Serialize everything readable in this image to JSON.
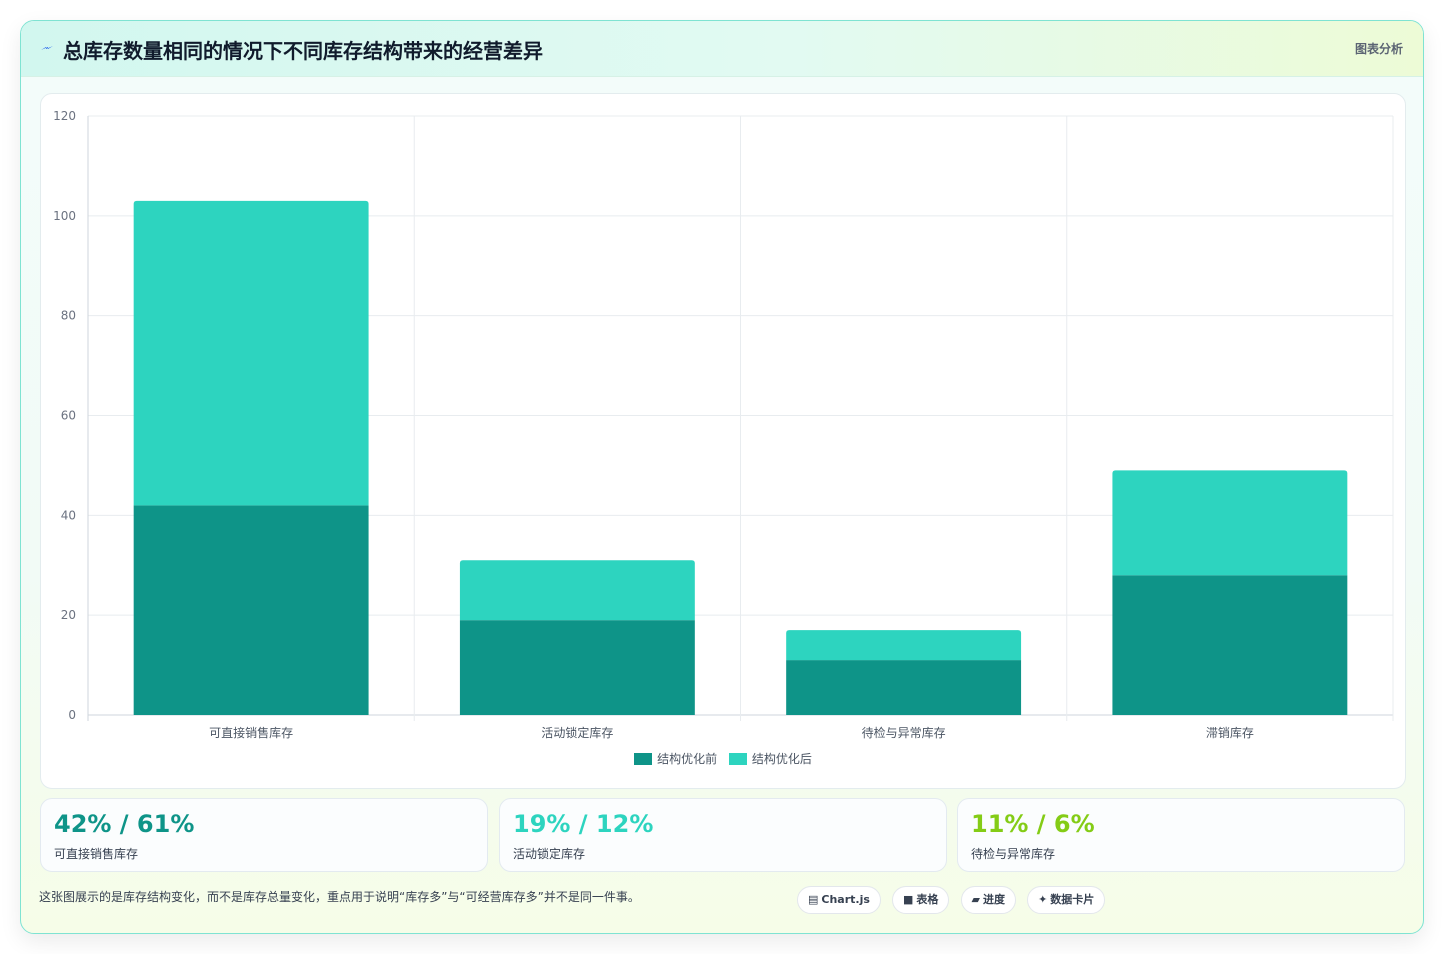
{
  "header": {
    "title": "总库存数量相同的情况下不同库存结构带来的经营差异",
    "tag": "图表分析",
    "icon": "lightning-icon"
  },
  "chart_data": {
    "type": "bar",
    "stacked": true,
    "categories": [
      "可直接销售库存",
      "活动锁定库存",
      "待检与异常库存",
      "滞销库存"
    ],
    "series": [
      {
        "name": "结构优化前",
        "values": [
          42,
          19,
          11,
          28
        ],
        "color": "#0e9488"
      },
      {
        "name": "结构优化后",
        "values": [
          61,
          12,
          6,
          21
        ],
        "color": "#2dd4bf"
      }
    ],
    "ylim": [
      0,
      120
    ],
    "yticks": [
      0,
      20,
      40,
      60,
      80,
      100,
      120
    ],
    "grid": true,
    "legend": "bottom"
  },
  "kpis": [
    {
      "value": "42% / 61%",
      "label": "可直接销售库存",
      "color": "#0e9488"
    },
    {
      "value": "19% / 12%",
      "label": "活动锁定库存",
      "color": "#2dd4bf"
    },
    {
      "value": "11% / 6%",
      "label": "待检与异常库存",
      "color": "#84cc16"
    }
  ],
  "footer": {
    "note": "这张图展示的是库存结构变化，而不是库存总量变化，重点用于说明“库存多”与“可经营库存多”并不是同一件事。",
    "pills": [
      {
        "icon": "▤",
        "icon_name": "chart-icon",
        "label": "Chart.js"
      },
      {
        "icon": "■",
        "icon_name": "table-icon",
        "label": "表格"
      },
      {
        "icon": "▰",
        "icon_name": "progress-icon",
        "label": "进度"
      },
      {
        "icon": "✦",
        "icon_name": "sparkle-icon",
        "label": "数据卡片"
      }
    ]
  }
}
